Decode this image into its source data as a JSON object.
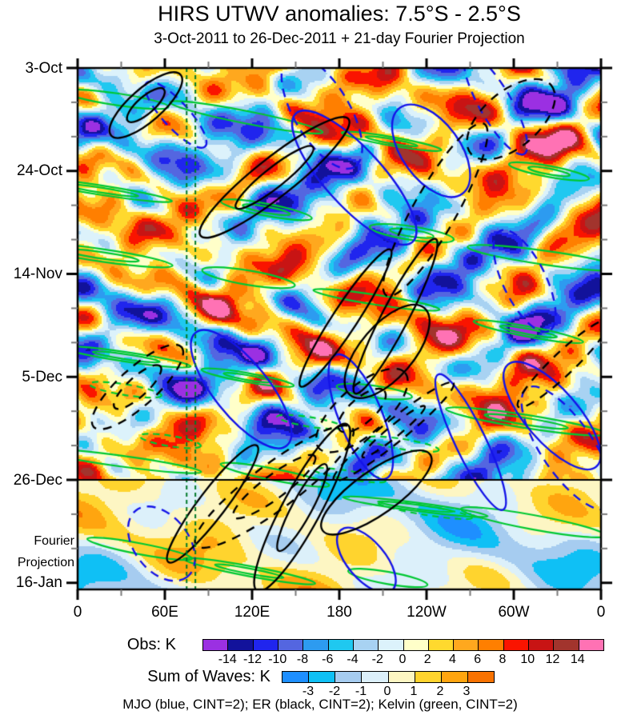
{
  "title": "HIRS UTWV anomalies: 7.5°S - 2.5°S",
  "subtitle": "3-Oct-2011 to 26-Dec-2011 + 21-day Fourier Projection",
  "chart_data": {
    "type": "heatmap",
    "description": "Hovmoller (longitude-time) diagram of HIRS upper-tropospheric water vapor anomalies averaged 7.5S-2.5S, with filled anomaly field (Obs, K), overlaid wave contours (MJO blue, ER black, Kelvin green), a 21-day Fourier projection below the 26-Dec divider shaded with the Sum-of-Waves palette, and two dashed vertical reference longitudes near 75E-81E.",
    "x_axis": {
      "tick_labels": [
        "0",
        "60E",
        "120E",
        "180",
        "120W",
        "60W",
        "0"
      ],
      "tick_degrees": [
        0,
        60,
        120,
        180,
        240,
        300,
        360
      ],
      "minor_tick_step_degrees": 30,
      "range_degrees": [
        0,
        360
      ]
    },
    "y_axis": {
      "tick_labels": [
        "3-Oct",
        "24-Oct",
        "14-Nov",
        "5-Dec",
        "26-Dec",
        "16-Jan"
      ],
      "tick_days": [
        0,
        21,
        42,
        63,
        84,
        105
      ],
      "minor_tick_step_days": 7,
      "direction": "time increases downward"
    },
    "colorbars": [
      {
        "label": "Obs: K",
        "tick_labels": [
          "-14",
          "-12",
          "-10",
          "-8",
          "-6",
          "-4",
          "-2",
          "0",
          "2",
          "4",
          "6",
          "8",
          "10",
          "12",
          "14"
        ],
        "colors": [
          "#9B30E2",
          "#12129B",
          "#2025EE",
          "#5466E0",
          "#2D9BF0",
          "#1FC8F0",
          "#A8D2F2",
          "#DCF2FB",
          "#FFFFC9",
          "#FFD92E",
          "#FFA81E",
          "#FF7F00",
          "#FA1400",
          "#C81414",
          "#A2342D",
          "#FF72B4"
        ]
      },
      {
        "label": "Sum of Waves: K",
        "tick_labels": [
          "-3",
          "-2",
          "-1",
          "0",
          "1",
          "2",
          "3"
        ],
        "colors": [
          "#1E8FFF",
          "#0FC0F5",
          "#A6CCF0",
          "#DCF0FA",
          "#FDF6C3",
          "#FFD42E",
          "#FFA50F",
          "#F87200"
        ]
      }
    ],
    "contours": [
      {
        "name": "MJO",
        "color_hex": "#1414E8",
        "cint_K": 2,
        "style": "solid positive, dashed negative, tilted eastward"
      },
      {
        "name": "ER",
        "color_hex": "#000000",
        "cint_K": 2,
        "style": "solid positive, dashed negative, tilted westward"
      },
      {
        "name": "Kelvin",
        "color_hex": "#00C832",
        "cint_K": 2,
        "style": "thin elongated eastward streaks"
      }
    ],
    "caption": "MJO (blue, CINT=2); ER (black, CINT=2); Kelvin (green, CINT=2)",
    "annotations": {
      "projection_divider_date": "26-Dec",
      "projection_label_line1": "Fourier",
      "projection_label_line2": "Projection",
      "reference_longitudes_deg_east": [
        75,
        81
      ]
    },
    "synthesis_seed": 42
  }
}
